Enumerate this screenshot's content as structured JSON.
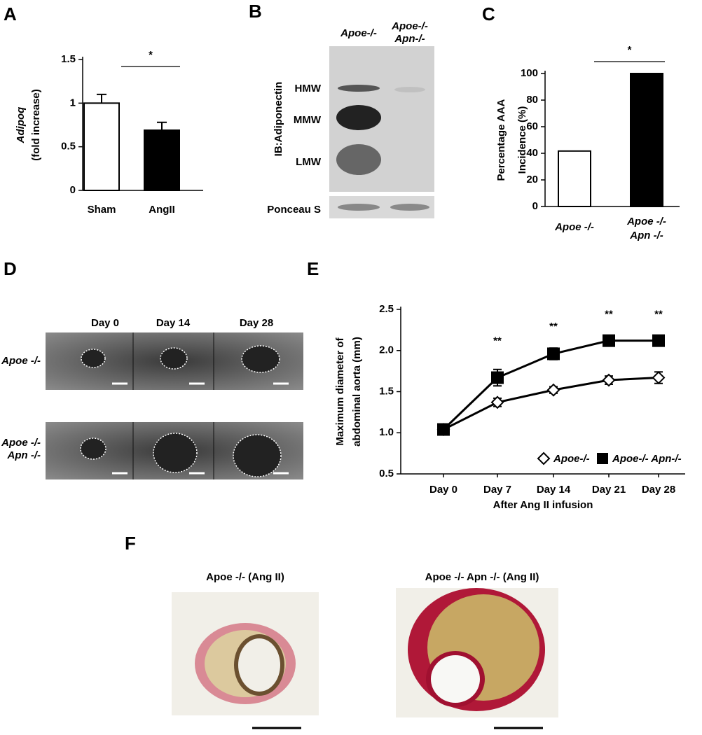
{
  "panels": {
    "a": "A",
    "b": "B",
    "c": "C",
    "d": "D",
    "e": "E",
    "f": "F"
  },
  "blot": {
    "ylabel": "IB:Adiponectin",
    "lanes": [
      [
        "Apoe-/-"
      ],
      [
        "Apoe-/-",
        "Apn-/-"
      ]
    ],
    "bands": [
      "HMW",
      "MMW",
      "LMW"
    ],
    "loading": "Ponceau S"
  },
  "ultrasound": {
    "days": [
      "Day 0",
      "Day 14",
      "Day 28"
    ],
    "rows": [
      [
        "Apoe -/-"
      ],
      [
        "Apoe -/-",
        "Apn -/-"
      ]
    ]
  },
  "histology": {
    "titles": [
      "Apoe -/- (Ang II)",
      "Apoe -/-  Apn -/- (Ang II)"
    ]
  },
  "chart_data": [
    {
      "type": "bar",
      "ylabel": [
        "Adipoq",
        "(fold increase)"
      ],
      "categories": [
        [
          "Sham"
        ],
        [
          "AngII"
        ]
      ],
      "values": [
        1.0,
        0.69
      ],
      "errors": [
        0.1,
        0.09
      ],
      "colors": [
        "#ffffff",
        "#000000"
      ],
      "ylim": [
        0,
        1.5
      ],
      "yticks": [
        0,
        0.5,
        1,
        1.5
      ],
      "significance": "*"
    },
    {
      "type": "bar",
      "ylabel": [
        "Percentage AAA",
        "Incidence (%)"
      ],
      "categories": [
        [
          "Apoe -/-"
        ],
        [
          "Apoe -/-",
          "Apn -/-"
        ]
      ],
      "values": [
        41.7,
        100
      ],
      "colors": [
        "#ffffff",
        "#000000"
      ],
      "ylim": [
        0,
        100
      ],
      "yticks": [
        0,
        20,
        40,
        60,
        80,
        100
      ],
      "significance": "*"
    },
    {
      "type": "line",
      "ylabel": [
        "Maximum diameter of",
        "abdominal aorta (mm)"
      ],
      "xlabel": "After Ang II infusion",
      "categories": [
        "Day 0",
        "Day 7",
        "Day 14",
        "Day 21",
        "Day 28"
      ],
      "series": [
        {
          "name": "Apoe-/-",
          "color": "#000000",
          "marker": "diamond",
          "marker_fill": "#ffffff",
          "values": [
            1.04,
            1.37,
            1.52,
            1.64,
            1.67
          ],
          "errors": [
            0.04,
            0.05,
            0.04,
            0.05,
            0.07
          ]
        },
        {
          "name": "Apoe-/- Apn-/-",
          "color": "#000000",
          "marker": "square",
          "marker_fill": "#000000",
          "values": [
            1.04,
            1.67,
            1.96,
            2.12,
            2.12
          ],
          "errors": [
            0.04,
            0.1,
            0.07,
            0.06,
            0.06
          ]
        }
      ],
      "significance": [
        null,
        "**",
        "**",
        "**",
        "**"
      ],
      "ylim": [
        0.5,
        2.5
      ],
      "yticks": [
        0.5,
        {
          "value": 1,
          "label": "1.0"
        },
        1.5,
        {
          "value": 2,
          "label": "2.0"
        },
        2.5
      ],
      "legend": "lower right"
    }
  ]
}
